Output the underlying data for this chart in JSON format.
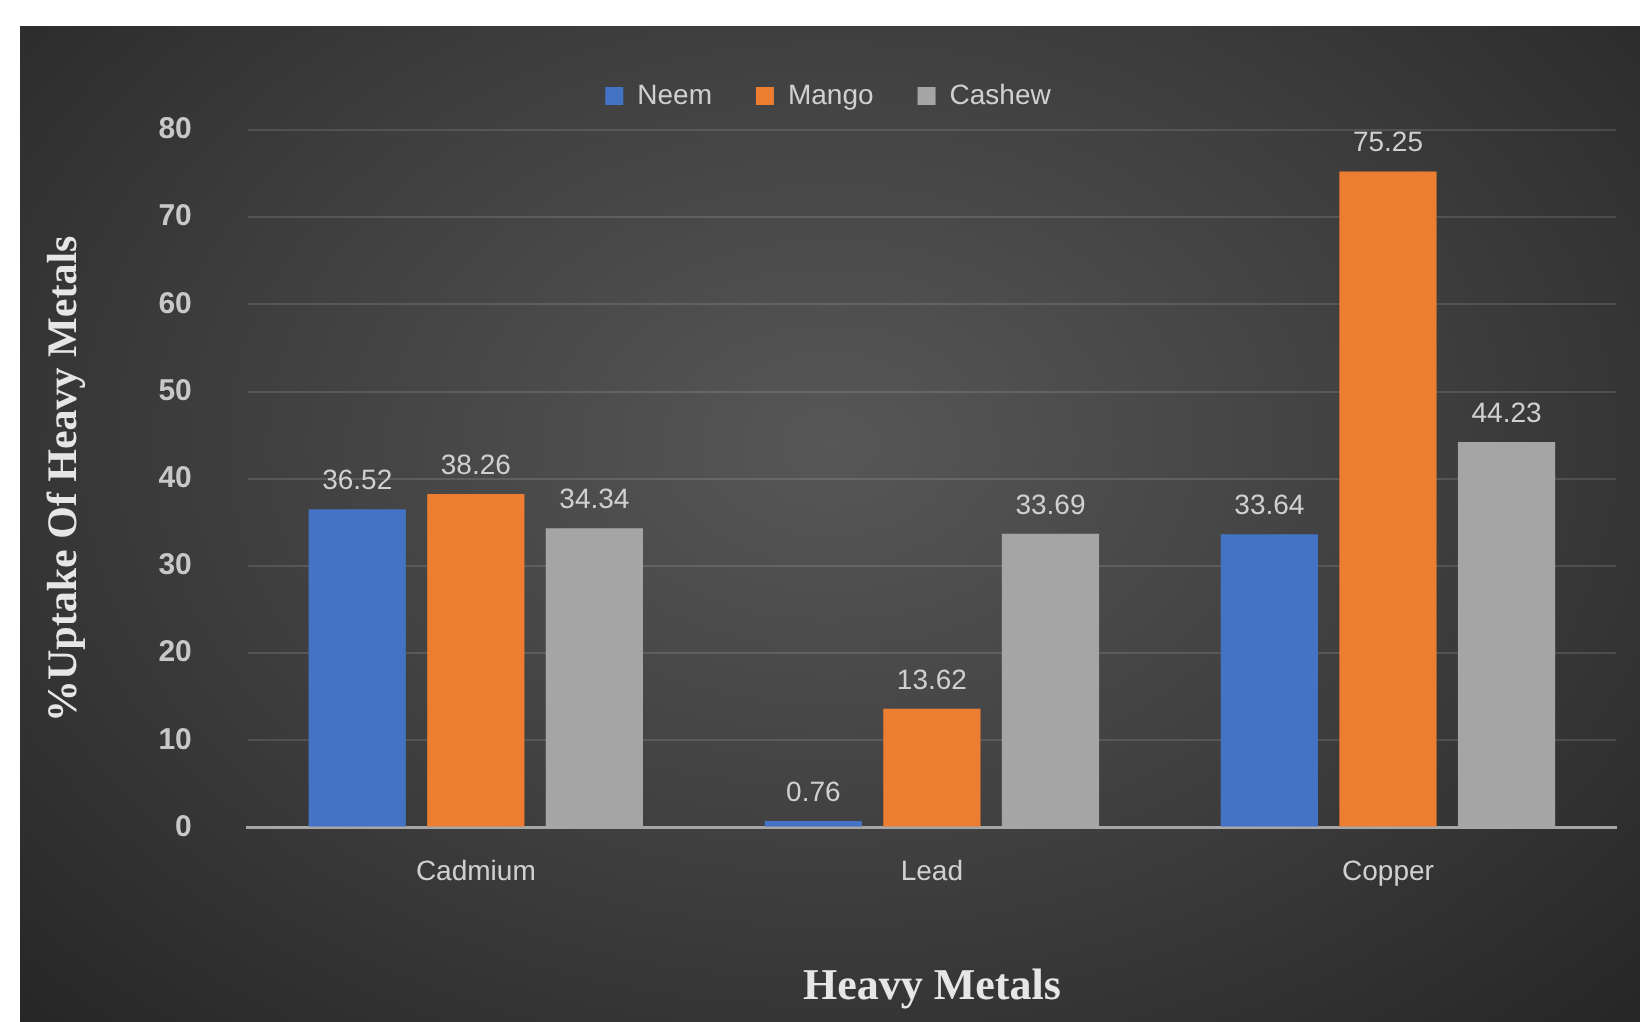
{
  "chart_data": {
    "type": "bar",
    "xlabel": "Heavy Metals",
    "ylabel": "%Uptake Of Heavy Metals",
    "categories": [
      "Cadmium",
      "Lead",
      "Copper"
    ],
    "series": [
      {
        "name": "Neem",
        "color": "#4472c4",
        "values": [
          36.52,
          0.76,
          33.64
        ]
      },
      {
        "name": "Mango",
        "color": "#ed7d31",
        "values": [
          38.26,
          13.62,
          75.25
        ]
      },
      {
        "name": "Cashew",
        "color": "#a5a5a5",
        "values": [
          34.34,
          33.69,
          44.23
        ]
      }
    ],
    "ylim": [
      0,
      80
    ],
    "yticks": [
      0,
      10,
      20,
      30,
      40,
      50,
      60,
      70,
      80
    ],
    "grid": "y",
    "legend": "top",
    "data_labels": true
  }
}
